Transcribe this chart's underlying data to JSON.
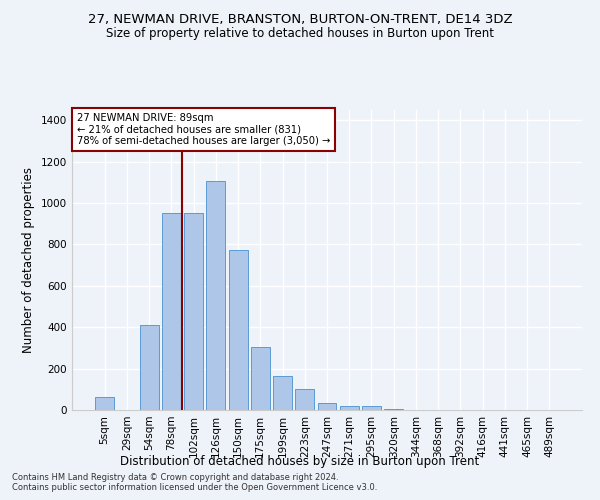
{
  "title": "27, NEWMAN DRIVE, BRANSTON, BURTON-ON-TRENT, DE14 3DZ",
  "subtitle": "Size of property relative to detached houses in Burton upon Trent",
  "xlabel": "Distribution of detached houses by size in Burton upon Trent",
  "ylabel": "Number of detached properties",
  "footer1": "Contains HM Land Registry data © Crown copyright and database right 2024.",
  "footer2": "Contains public sector information licensed under the Open Government Licence v3.0.",
  "categories": [
    "5sqm",
    "29sqm",
    "54sqm",
    "78sqm",
    "102sqm",
    "126sqm",
    "150sqm",
    "175sqm",
    "199sqm",
    "223sqm",
    "247sqm",
    "271sqm",
    "295sqm",
    "320sqm",
    "344sqm",
    "368sqm",
    "392sqm",
    "416sqm",
    "441sqm",
    "465sqm",
    "489sqm"
  ],
  "values": [
    65,
    0,
    410,
    950,
    950,
    1105,
    775,
    305,
    165,
    100,
    35,
    18,
    18,
    5,
    0,
    0,
    0,
    0,
    0,
    0,
    0
  ],
  "bar_color": "#aec6e8",
  "bar_edge_color": "#5b9bd5",
  "vline_x": 3.5,
  "vline_color": "#8b0000",
  "annotation_text": "27 NEWMAN DRIVE: 89sqm\n← 21% of detached houses are smaller (831)\n78% of semi-detached houses are larger (3,050) →",
  "annotation_box_color": "white",
  "annotation_box_edge": "#8b0000",
  "ylim": [
    0,
    1450
  ],
  "background_color": "#eef2f9",
  "grid_color": "white",
  "title_fontsize": 9.5,
  "subtitle_fontsize": 8.5,
  "xlabel_fontsize": 8.5,
  "ylabel_fontsize": 8.5,
  "tick_fontsize": 7.5,
  "footer_fontsize": 6.0
}
